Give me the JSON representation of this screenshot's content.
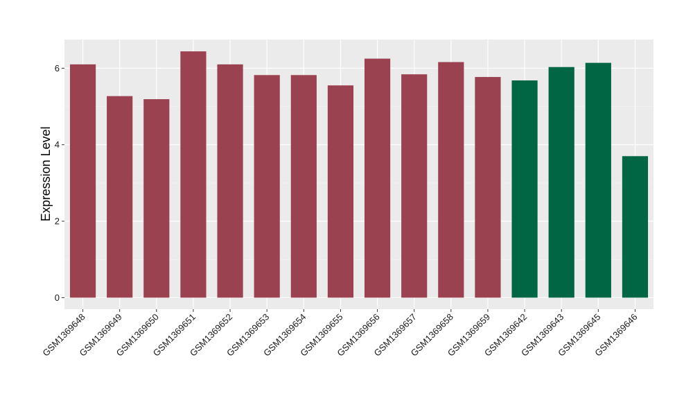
{
  "chart_data": {
    "type": "bar",
    "title": "",
    "xlabel": "",
    "ylabel": "Expression Level",
    "ylim": [
      -0.3,
      6.75
    ],
    "yticks": [
      0,
      2,
      4,
      6
    ],
    "grid": true,
    "panel_background": "#ebebeb",
    "categories": [
      "GSM1369648",
      "GSM1369649",
      "GSM1369650",
      "GSM1369651",
      "GSM1369652",
      "GSM1369653",
      "GSM1369654",
      "GSM1369655",
      "GSM1369656",
      "GSM1369657",
      "GSM1369658",
      "GSM1369659",
      "GSM1369642",
      "GSM1369643",
      "GSM1369645",
      "GSM1369646"
    ],
    "values": [
      6.1,
      5.27,
      5.19,
      6.44,
      6.1,
      5.82,
      5.82,
      5.55,
      6.25,
      5.84,
      6.16,
      5.77,
      5.68,
      6.03,
      6.14,
      3.7
    ],
    "bar_colors": [
      "#9b4250",
      "#9b4250",
      "#9b4250",
      "#9b4250",
      "#9b4250",
      "#9b4250",
      "#9b4250",
      "#9b4250",
      "#9b4250",
      "#9b4250",
      "#9b4250",
      "#9b4250",
      "#006644",
      "#006644",
      "#006644",
      "#006644"
    ]
  }
}
